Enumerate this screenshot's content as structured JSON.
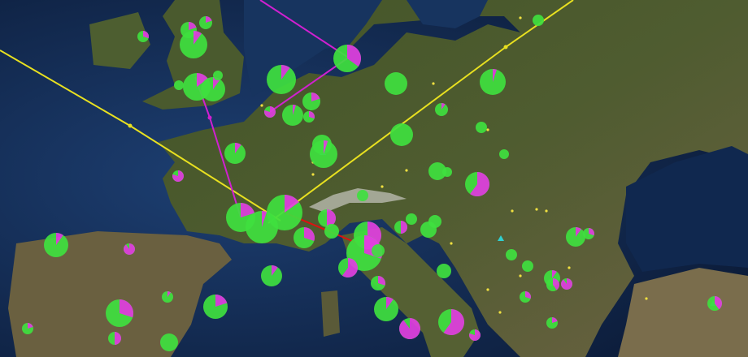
{
  "map": {
    "basemap": "satellite",
    "colors": {
      "sea": "#16325e",
      "deep_sea": "#0b1a36",
      "land": "#4a5a2e",
      "land_dry": "#6b6142",
      "pie_primary": "#3fe03f",
      "pie_secondary": "#e040e0",
      "route_yellow": "#e8e020",
      "route_magenta": "#d020d0",
      "route_red": "#e01010",
      "point_small": "#f0e040",
      "marker_cyan": "#30d0d0"
    },
    "pie_markers_magenta_share": [
      0.3,
      0.2,
      0.1,
      0.2,
      0.15,
      0.1,
      0,
      0,
      0.35,
      0.1,
      0.8,
      0.05,
      0.2,
      0.3,
      0,
      0.05,
      0.1,
      0,
      0,
      0,
      0,
      0.05,
      0.1,
      0.8,
      0,
      0,
      0.6,
      0,
      0,
      0.2,
      0.05,
      0.15,
      0.3,
      0.5,
      0,
      0.6,
      0.3,
      0,
      0.6,
      0.5,
      0,
      0,
      0,
      0.1,
      0.9,
      0.1,
      0.3,
      0,
      0,
      0,
      0.1,
      0.3,
      0.1,
      0.4,
      0.9,
      0.3,
      0.4,
      0.3,
      0.1,
      0.2,
      0.5,
      0,
      0.2,
      0.1,
      0.9,
      0.6,
      0.8,
      0.2
    ],
    "routes": [
      "yellow",
      "yellow",
      "magenta",
      "magenta",
      "magenta",
      "red"
    ]
  }
}
